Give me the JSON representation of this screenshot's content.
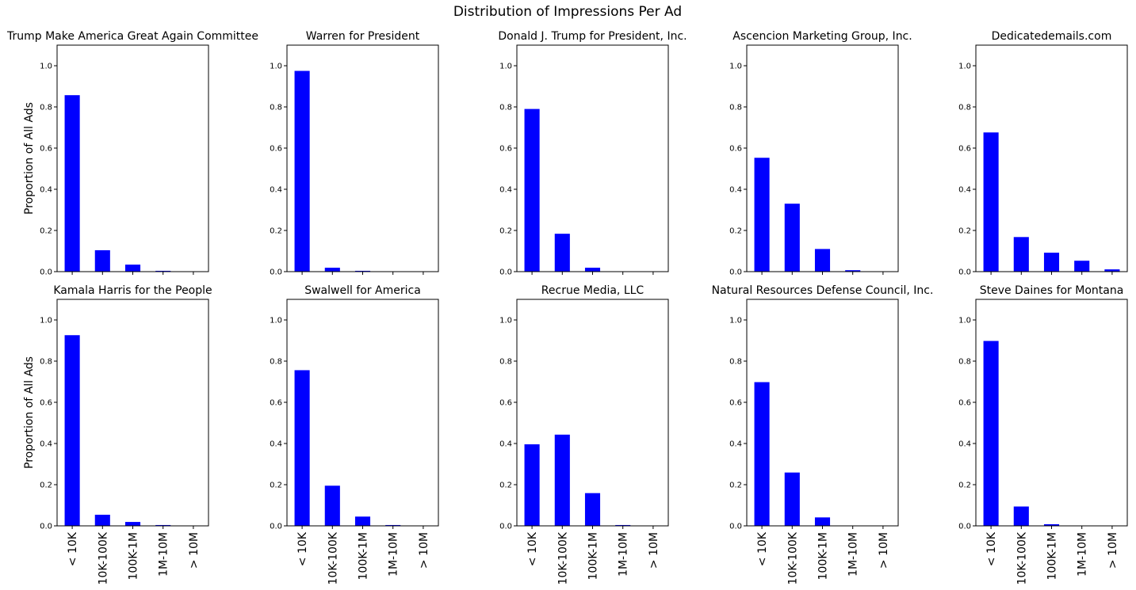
{
  "figure_title": "Distribution of Impressions Per Ad",
  "colors": {
    "bar": "#0000ff",
    "axis": "#000000"
  },
  "ylabel": "Proportion of All Ads",
  "chart_data": [
    {
      "type": "bar",
      "title": "Trump Make America Great Again Committee",
      "categories": [
        "< 10K",
        "10K-100K",
        "100K-1M",
        "1M-10M",
        "> 10M"
      ],
      "values": [
        0.857,
        0.104,
        0.034,
        0.004,
        0.0
      ],
      "ylabel": "Proportion of All Ads",
      "ylim": [
        0,
        1.1
      ],
      "yticks": [
        "0.0",
        "0.2",
        "0.4",
        "0.6",
        "0.8",
        "1.0"
      ]
    },
    {
      "type": "bar",
      "title": "Warren for President",
      "categories": [
        "< 10K",
        "10K-100K",
        "100K-1M",
        "1M-10M",
        "> 10M"
      ],
      "values": [
        0.975,
        0.019,
        0.004,
        0.0,
        0.0
      ],
      "ylim": [
        0,
        1.1
      ],
      "yticks": [
        "0.0",
        "0.2",
        "0.4",
        "0.6",
        "0.8",
        "1.0"
      ]
    },
    {
      "type": "bar",
      "title": "Donald J. Trump for President, Inc.",
      "categories": [
        "< 10K",
        "10K-100K",
        "100K-1M",
        "1M-10M",
        "> 10M"
      ],
      "values": [
        0.79,
        0.184,
        0.019,
        0.0,
        0.0
      ],
      "ylim": [
        0,
        1.1
      ],
      "yticks": [
        "0.0",
        "0.2",
        "0.4",
        "0.6",
        "0.8",
        "1.0"
      ]
    },
    {
      "type": "bar",
      "title": "Ascencion Marketing Group, Inc.",
      "categories": [
        "< 10K",
        "10K-100K",
        "100K-1M",
        "1M-10M",
        "> 10M"
      ],
      "values": [
        0.553,
        0.33,
        0.11,
        0.007,
        0.0
      ],
      "ylim": [
        0,
        1.1
      ],
      "yticks": [
        "0.0",
        "0.2",
        "0.4",
        "0.6",
        "0.8",
        "1.0"
      ]
    },
    {
      "type": "bar",
      "title": "Dedicatedemails.com",
      "categories": [
        "< 10K",
        "10K-100K",
        "100K-1M",
        "1M-10M",
        "> 10M"
      ],
      "values": [
        0.676,
        0.168,
        0.092,
        0.053,
        0.011
      ],
      "ylim": [
        0,
        1.1
      ],
      "yticks": [
        "0.0",
        "0.2",
        "0.4",
        "0.6",
        "0.8",
        "1.0"
      ]
    },
    {
      "type": "bar",
      "title": "Kamala Harris for the People",
      "categories": [
        "< 10K",
        "10K-100K",
        "100K-1M",
        "1M-10M",
        "> 10M"
      ],
      "values": [
        0.926,
        0.054,
        0.019,
        0.004,
        0.0
      ],
      "ylabel": "Proportion of All Ads",
      "ylim": [
        0,
        1.1
      ],
      "yticks": [
        "0.0",
        "0.2",
        "0.4",
        "0.6",
        "0.8",
        "1.0"
      ]
    },
    {
      "type": "bar",
      "title": "Swalwell for America",
      "categories": [
        "< 10K",
        "10K-100K",
        "100K-1M",
        "1M-10M",
        "> 10M"
      ],
      "values": [
        0.756,
        0.195,
        0.045,
        0.004,
        0.0
      ],
      "ylim": [
        0,
        1.1
      ],
      "yticks": [
        "0.0",
        "0.2",
        "0.4",
        "0.6",
        "0.8",
        "1.0"
      ]
    },
    {
      "type": "bar",
      "title": "Recrue Media, LLC",
      "categories": [
        "< 10K",
        "10K-100K",
        "100K-1M",
        "1M-10M",
        "> 10M"
      ],
      "values": [
        0.396,
        0.443,
        0.159,
        0.004,
        0.0
      ],
      "ylim": [
        0,
        1.1
      ],
      "yticks": [
        "0.0",
        "0.2",
        "0.4",
        "0.6",
        "0.8",
        "1.0"
      ]
    },
    {
      "type": "bar",
      "title": "Natural Resources Defense Council, Inc.",
      "categories": [
        "< 10K",
        "10K-100K",
        "100K-1M",
        "1M-10M",
        "> 10M"
      ],
      "values": [
        0.698,
        0.259,
        0.041,
        0.0,
        0.0
      ],
      "ylim": [
        0,
        1.1
      ],
      "yticks": [
        "0.0",
        "0.2",
        "0.4",
        "0.6",
        "0.8",
        "1.0"
      ]
    },
    {
      "type": "bar",
      "title": "Steve Daines for Montana",
      "categories": [
        "< 10K",
        "10K-100K",
        "100K-1M",
        "1M-10M",
        "> 10M"
      ],
      "values": [
        0.898,
        0.094,
        0.008,
        0.0,
        0.0
      ],
      "ylim": [
        0,
        1.1
      ],
      "yticks": [
        "0.0",
        "0.2",
        "0.4",
        "0.6",
        "0.8",
        "1.0"
      ]
    }
  ]
}
